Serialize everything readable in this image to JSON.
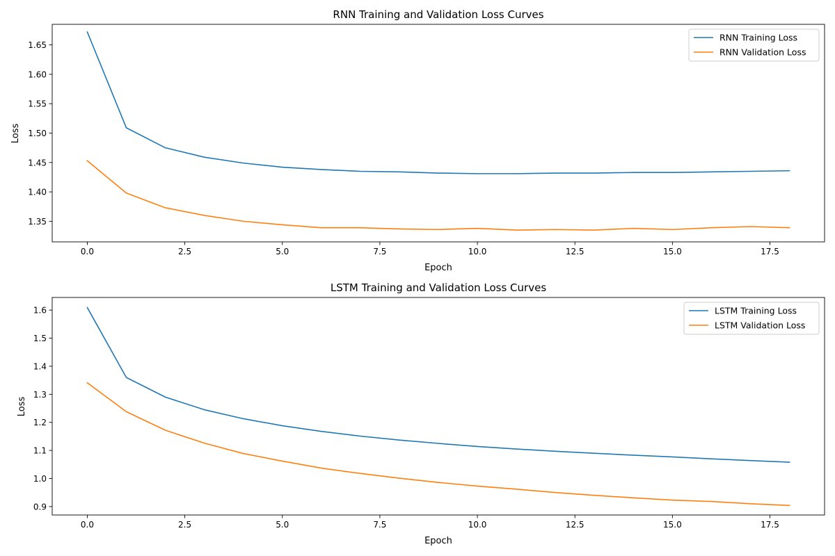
{
  "chart_data": [
    {
      "type": "line",
      "title": "RNN Training and Validation Loss Curves",
      "xlabel": "Epoch",
      "ylabel": "Loss",
      "xlim": [
        -0.9,
        18.9
      ],
      "ylim": [
        1.315,
        1.685
      ],
      "xticks": [
        0.0,
        2.5,
        5.0,
        7.5,
        10.0,
        12.5,
        15.0,
        17.5
      ],
      "xtick_labels": [
        "0.0",
        "2.5",
        "5.0",
        "7.5",
        "10.0",
        "12.5",
        "15.0",
        "17.5"
      ],
      "yticks": [
        1.35,
        1.4,
        1.45,
        1.5,
        1.55,
        1.6,
        1.65
      ],
      "ytick_labels": [
        "1.35",
        "1.40",
        "1.45",
        "1.50",
        "1.55",
        "1.60",
        "1.65"
      ],
      "grid": false,
      "legend_position": "top-right",
      "x": [
        0,
        1,
        2,
        3,
        4,
        5,
        6,
        7,
        8,
        9,
        10,
        11,
        12,
        13,
        14,
        15,
        16,
        17,
        18
      ],
      "series": [
        {
          "name": "RNN Training Loss",
          "color": "#1f77b4",
          "values": [
            1.672,
            1.509,
            1.475,
            1.459,
            1.449,
            1.442,
            1.438,
            1.435,
            1.434,
            1.432,
            1.431,
            1.431,
            1.432,
            1.432,
            1.433,
            1.433,
            1.434,
            1.435,
            1.436
          ]
        },
        {
          "name": "RNN Validation Loss",
          "color": "#ff7f0e",
          "values": [
            1.453,
            1.398,
            1.373,
            1.36,
            1.35,
            1.344,
            1.339,
            1.339,
            1.337,
            1.336,
            1.338,
            1.335,
            1.336,
            1.335,
            1.338,
            1.336,
            1.339,
            1.341,
            1.339
          ]
        }
      ]
    },
    {
      "type": "line",
      "title": "LSTM Training and Validation Loss Curves",
      "xlabel": "Epoch",
      "ylabel": "Loss",
      "xlim": [
        -0.9,
        18.9
      ],
      "ylim": [
        0.87,
        1.645
      ],
      "xticks": [
        0.0,
        2.5,
        5.0,
        7.5,
        10.0,
        12.5,
        15.0,
        17.5
      ],
      "xtick_labels": [
        "0.0",
        "2.5",
        "5.0",
        "7.5",
        "10.0",
        "12.5",
        "15.0",
        "17.5"
      ],
      "yticks": [
        0.9,
        1.0,
        1.1,
        1.2,
        1.3,
        1.4,
        1.5,
        1.6
      ],
      "ytick_labels": [
        "0.9",
        "1.0",
        "1.1",
        "1.2",
        "1.3",
        "1.4",
        "1.5",
        "1.6"
      ],
      "grid": false,
      "legend_position": "top-right",
      "x": [
        0,
        1,
        2,
        3,
        4,
        5,
        6,
        7,
        8,
        9,
        10,
        11,
        12,
        13,
        14,
        15,
        16,
        17,
        18
      ],
      "series": [
        {
          "name": "LSTM Training Loss",
          "color": "#1f77b4",
          "values": [
            1.609,
            1.36,
            1.29,
            1.245,
            1.213,
            1.188,
            1.168,
            1.151,
            1.137,
            1.125,
            1.114,
            1.105,
            1.097,
            1.09,
            1.083,
            1.077,
            1.07,
            1.064,
            1.058
          ]
        },
        {
          "name": "LSTM Validation Loss",
          "color": "#ff7f0e",
          "values": [
            1.341,
            1.238,
            1.172,
            1.126,
            1.089,
            1.062,
            1.037,
            1.018,
            1.001,
            0.986,
            0.973,
            0.962,
            0.95,
            0.94,
            0.931,
            0.923,
            0.918,
            0.91,
            0.904
          ]
        }
      ]
    }
  ]
}
